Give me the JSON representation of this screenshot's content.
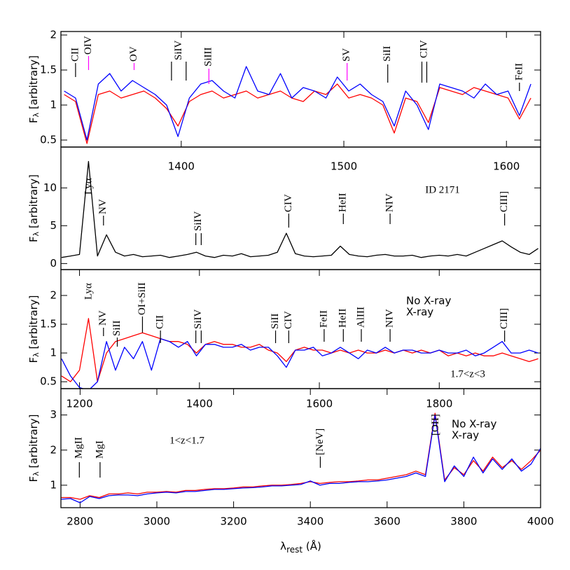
{
  "chart_data": [
    {
      "type": "line",
      "ylabel": "F",
      "ylabel_sub": "λ",
      "ylabel_rest": " [arbitrary]",
      "xlim": [
        1326,
        1621
      ],
      "xticks": [
        1400,
        1500,
        1600
      ],
      "ylim": [
        0.4,
        2.05
      ],
      "yticks": [
        0.5,
        1,
        1.5,
        2
      ],
      "x": [
        1328,
        1335,
        1342,
        1349,
        1356,
        1363,
        1370,
        1377,
        1384,
        1391,
        1398,
        1405,
        1412,
        1419,
        1426,
        1433,
        1440,
        1447,
        1454,
        1461,
        1468,
        1475,
        1482,
        1489,
        1496,
        1503,
        1510,
        1517,
        1524,
        1531,
        1538,
        1545,
        1552,
        1559,
        1566,
        1573,
        1580,
        1587,
        1594,
        1601,
        1608,
        1615
      ],
      "series": [
        {
          "color": "#ff0000",
          "values": [
            1.15,
            1.05,
            0.45,
            1.15,
            1.2,
            1.1,
            1.15,
            1.2,
            1.1,
            0.95,
            0.7,
            1.05,
            1.15,
            1.2,
            1.1,
            1.15,
            1.2,
            1.1,
            1.15,
            1.2,
            1.1,
            1.05,
            1.2,
            1.15,
            1.3,
            1.1,
            1.15,
            1.1,
            1.0,
            0.6,
            1.1,
            1.05,
            0.75,
            1.25,
            1.2,
            1.15,
            1.25,
            1.2,
            1.15,
            1.1,
            0.8,
            1.1
          ]
        },
        {
          "color": "#0000ff",
          "values": [
            1.2,
            1.1,
            0.5,
            1.3,
            1.45,
            1.2,
            1.35,
            1.25,
            1.15,
            1.0,
            0.55,
            1.1,
            1.3,
            1.35,
            1.2,
            1.1,
            1.55,
            1.2,
            1.15,
            1.45,
            1.1,
            1.25,
            1.2,
            1.1,
            1.4,
            1.2,
            1.3,
            1.15,
            1.05,
            0.7,
            1.2,
            1.0,
            0.65,
            1.3,
            1.25,
            1.2,
            1.1,
            1.3,
            1.15,
            1.2,
            0.85,
            1.3
          ]
        }
      ],
      "annotations": [
        {
          "label": "CII",
          "x": 1335,
          "color": "#000000"
        },
        {
          "label": "OIV",
          "x": 1343,
          "color": "#ff00ff"
        },
        {
          "label": "OV",
          "x": 1371,
          "color": "#ff00ff"
        },
        {
          "label": "SiIV",
          "x": [
            1394,
            1403
          ],
          "color": "#000000"
        },
        {
          "label": "SiIII",
          "x": 1417,
          "color": "#ff00ff"
        },
        {
          "label": "SV",
          "x": 1502,
          "color": "#ff00ff"
        },
        {
          "label": "SiII",
          "x": 1527,
          "color": "#000000"
        },
        {
          "label": "CIV",
          "x": [
            1548,
            1551
          ],
          "color": "#000000"
        },
        {
          "label": "FeII",
          "x": 1608,
          "color": "#000000"
        }
      ]
    },
    {
      "type": "line",
      "ylabel": "F",
      "ylabel_sub": "λ",
      "ylabel_rest": " [arbitrary]",
      "xlim": [
        1169,
        1969
      ],
      "ylim": [
        -0.8,
        15.4
      ],
      "yticks": [
        0,
        5,
        10
      ],
      "note": "ID 2171",
      "x": [
        1170,
        1185,
        1200,
        1215,
        1230,
        1245,
        1260,
        1275,
        1290,
        1305,
        1320,
        1335,
        1350,
        1365,
        1380,
        1395,
        1410,
        1425,
        1440,
        1455,
        1470,
        1485,
        1500,
        1515,
        1530,
        1545,
        1560,
        1575,
        1590,
        1605,
        1620,
        1635,
        1650,
        1665,
        1680,
        1695,
        1710,
        1725,
        1740,
        1755,
        1770,
        1785,
        1800,
        1815,
        1830,
        1845,
        1860,
        1875,
        1890,
        1905,
        1920,
        1935,
        1950,
        1965
      ],
      "series": [
        {
          "color": "#000000",
          "values": [
            0.8,
            1.0,
            1.2,
            13.5,
            1.0,
            3.8,
            1.5,
            1.0,
            1.2,
            0.9,
            1.0,
            1.1,
            0.8,
            1.0,
            1.2,
            1.5,
            1.0,
            0.8,
            1.1,
            1.0,
            1.3,
            0.9,
            1.0,
            1.1,
            1.5,
            4.0,
            1.3,
            1.0,
            0.9,
            1.0,
            1.1,
            2.3,
            1.2,
            1.0,
            0.9,
            1.1,
            1.2,
            1.0,
            1.0,
            1.1,
            0.8,
            1.0,
            1.1,
            1.0,
            1.2,
            1.0,
            1.5,
            2.0,
            2.5,
            3.0,
            2.2,
            1.5,
            1.2,
            2.0
          ]
        }
      ],
      "annotations": [
        {
          "label": "Lyα",
          "x": 1216,
          "color": "#000000"
        },
        {
          "label": "NV",
          "x": 1240,
          "color": "#000000"
        },
        {
          "label": "SiIV",
          "x": [
            1394,
            1403
          ],
          "color": "#000000"
        },
        {
          "label": "CIV",
          "x": 1549,
          "color": "#000000"
        },
        {
          "label": "HeII",
          "x": 1640,
          "color": "#000000"
        },
        {
          "label": "NIV",
          "x": 1718,
          "color": "#000000"
        },
        {
          "label": "CIII]",
          "x": 1909,
          "color": "#000000"
        }
      ]
    },
    {
      "type": "line",
      "ylabel": "F",
      "ylabel_sub": "λ",
      "ylabel_rest": " [arbitrary]",
      "xlim": [
        1169,
        1969
      ],
      "xticks": [
        1200,
        1400,
        1600,
        1800
      ],
      "ylim": [
        0.38,
        2.45
      ],
      "yticks": [
        0.5,
        1,
        1.5,
        2
      ],
      "note": "1.7<z<3",
      "legend": "upper right",
      "x": [
        1170,
        1185,
        1200,
        1215,
        1230,
        1245,
        1260,
        1275,
        1290,
        1305,
        1320,
        1335,
        1350,
        1365,
        1380,
        1395,
        1410,
        1425,
        1440,
        1455,
        1470,
        1485,
        1500,
        1515,
        1530,
        1545,
        1560,
        1575,
        1590,
        1605,
        1620,
        1635,
        1650,
        1665,
        1680,
        1695,
        1710,
        1725,
        1740,
        1755,
        1770,
        1785,
        1800,
        1815,
        1830,
        1845,
        1860,
        1875,
        1890,
        1905,
        1920,
        1935,
        1950,
        1965
      ],
      "series": [
        {
          "name": "No X-ray",
          "color": "#ff0000",
          "values": [
            0.6,
            0.5,
            0.7,
            1.6,
            0.5,
            1.0,
            1.2,
            1.25,
            1.3,
            1.35,
            1.3,
            1.25,
            1.2,
            1.2,
            1.15,
            1.0,
            1.15,
            1.2,
            1.15,
            1.15,
            1.1,
            1.1,
            1.15,
            1.05,
            1.0,
            0.85,
            1.05,
            1.1,
            1.05,
            1.05,
            1.0,
            1.05,
            1.0,
            1.05,
            1.0,
            1.0,
            1.05,
            1.0,
            1.05,
            1.0,
            1.05,
            1.0,
            1.05,
            0.95,
            1.0,
            0.95,
            1.0,
            0.95,
            0.95,
            1.0,
            0.95,
            0.9,
            0.85,
            0.9
          ]
        },
        {
          "name": "X-ray",
          "color": "#0000ff",
          "values": [
            0.9,
            0.6,
            0.4,
            0.35,
            0.5,
            1.2,
            0.7,
            1.1,
            0.9,
            1.2,
            0.7,
            1.25,
            1.2,
            1.1,
            1.2,
            0.95,
            1.15,
            1.15,
            1.1,
            1.1,
            1.15,
            1.05,
            1.1,
            1.1,
            0.95,
            0.75,
            1.05,
            1.05,
            1.1,
            0.95,
            1.0,
            1.1,
            1.0,
            0.9,
            1.05,
            1.0,
            1.1,
            1.0,
            1.05,
            1.05,
            1.0,
            1.0,
            1.05,
            1.0,
            1.0,
            1.05,
            0.95,
            1.0,
            1.1,
            1.2,
            1.0,
            1.0,
            1.05,
            1.0
          ]
        }
      ],
      "annotations": [
        {
          "label": "Lyα",
          "x": 1216,
          "color": "#000000"
        },
        {
          "label": "NV",
          "x": 1240,
          "color": "#000000"
        },
        {
          "label": "SiII",
          "x": 1263,
          "color": "#000000"
        },
        {
          "label": "OI+SiII",
          "x": 1305,
          "color": "#000000"
        },
        {
          "label": "CII",
          "x": 1335,
          "color": "#000000"
        },
        {
          "label": "SiIV",
          "x": [
            1394,
            1403
          ],
          "color": "#000000"
        },
        {
          "label": "SiII",
          "x": 1527,
          "color": "#000000"
        },
        {
          "label": "CIV",
          "x": 1549,
          "color": "#000000"
        },
        {
          "label": "FeII",
          "x": 1608,
          "color": "#000000"
        },
        {
          "label": "HeII",
          "x": 1640,
          "color": "#000000"
        },
        {
          "label": "AlIII",
          "x": 1670,
          "color": "#000000"
        },
        {
          "label": "NIV",
          "x": 1718,
          "color": "#000000"
        },
        {
          "label": "CIII]",
          "x": 1909,
          "color": "#000000"
        }
      ]
    },
    {
      "type": "line",
      "ylabel": "F",
      "ylabel_sub": "λ",
      "ylabel_rest": " [arbitrary]",
      "xlabel": "λ",
      "xlabel_sub": "rest",
      "xlabel_rest": " (Å)",
      "xlim": [
        2750,
        4000
      ],
      "xticks": [
        2800,
        3000,
        3200,
        3400,
        3600,
        3800,
        4000
      ],
      "ylim": [
        0.36,
        3.75
      ],
      "yticks": [
        1,
        2,
        3
      ],
      "note": "1<z<1.7",
      "legend": "upper right",
      "x": [
        2750,
        2775,
        2800,
        2825,
        2850,
        2875,
        2900,
        2925,
        2950,
        2975,
        3000,
        3025,
        3050,
        3075,
        3100,
        3125,
        3150,
        3175,
        3200,
        3225,
        3250,
        3275,
        3300,
        3325,
        3350,
        3375,
        3400,
        3425,
        3450,
        3475,
        3500,
        3525,
        3550,
        3575,
        3600,
        3625,
        3650,
        3675,
        3700,
        3725,
        3750,
        3775,
        3800,
        3825,
        3850,
        3875,
        3900,
        3925,
        3950,
        3975,
        4000
      ],
      "series": [
        {
          "name": "No X-ray",
          "color": "#ff0000",
          "values": [
            0.65,
            0.65,
            0.6,
            0.7,
            0.65,
            0.75,
            0.75,
            0.78,
            0.75,
            0.8,
            0.8,
            0.82,
            0.8,
            0.85,
            0.85,
            0.88,
            0.9,
            0.9,
            0.92,
            0.95,
            0.95,
            0.98,
            1.0,
            1.0,
            1.02,
            1.05,
            1.1,
            1.05,
            1.08,
            1.1,
            1.1,
            1.12,
            1.15,
            1.15,
            1.2,
            1.25,
            1.3,
            1.4,
            1.3,
            3.05,
            1.15,
            1.5,
            1.3,
            1.7,
            1.4,
            1.8,
            1.5,
            1.7,
            1.45,
            1.7,
            2.0
          ]
        },
        {
          "name": "X-ray",
          "color": "#0000ff",
          "values": [
            0.6,
            0.62,
            0.5,
            0.68,
            0.62,
            0.7,
            0.72,
            0.72,
            0.7,
            0.75,
            0.78,
            0.8,
            0.78,
            0.82,
            0.82,
            0.85,
            0.88,
            0.88,
            0.9,
            0.92,
            0.93,
            0.95,
            0.98,
            0.98,
            1.0,
            1.02,
            1.12,
            1.0,
            1.05,
            1.05,
            1.08,
            1.1,
            1.1,
            1.12,
            1.15,
            1.2,
            1.25,
            1.35,
            1.25,
            3.0,
            1.1,
            1.55,
            1.25,
            1.8,
            1.35,
            1.75,
            1.45,
            1.75,
            1.4,
            1.6,
            2.05
          ]
        }
      ],
      "annotations": [
        {
          "label": "MgII",
          "x": 2798,
          "color": "#000000"
        },
        {
          "label": "MgI",
          "x": 2852,
          "color": "#000000"
        },
        {
          "label": "[NeV]",
          "x": 3426,
          "color": "#000000"
        },
        {
          "label": "[OII]",
          "x": 3727,
          "color": "#000000"
        }
      ]
    }
  ]
}
